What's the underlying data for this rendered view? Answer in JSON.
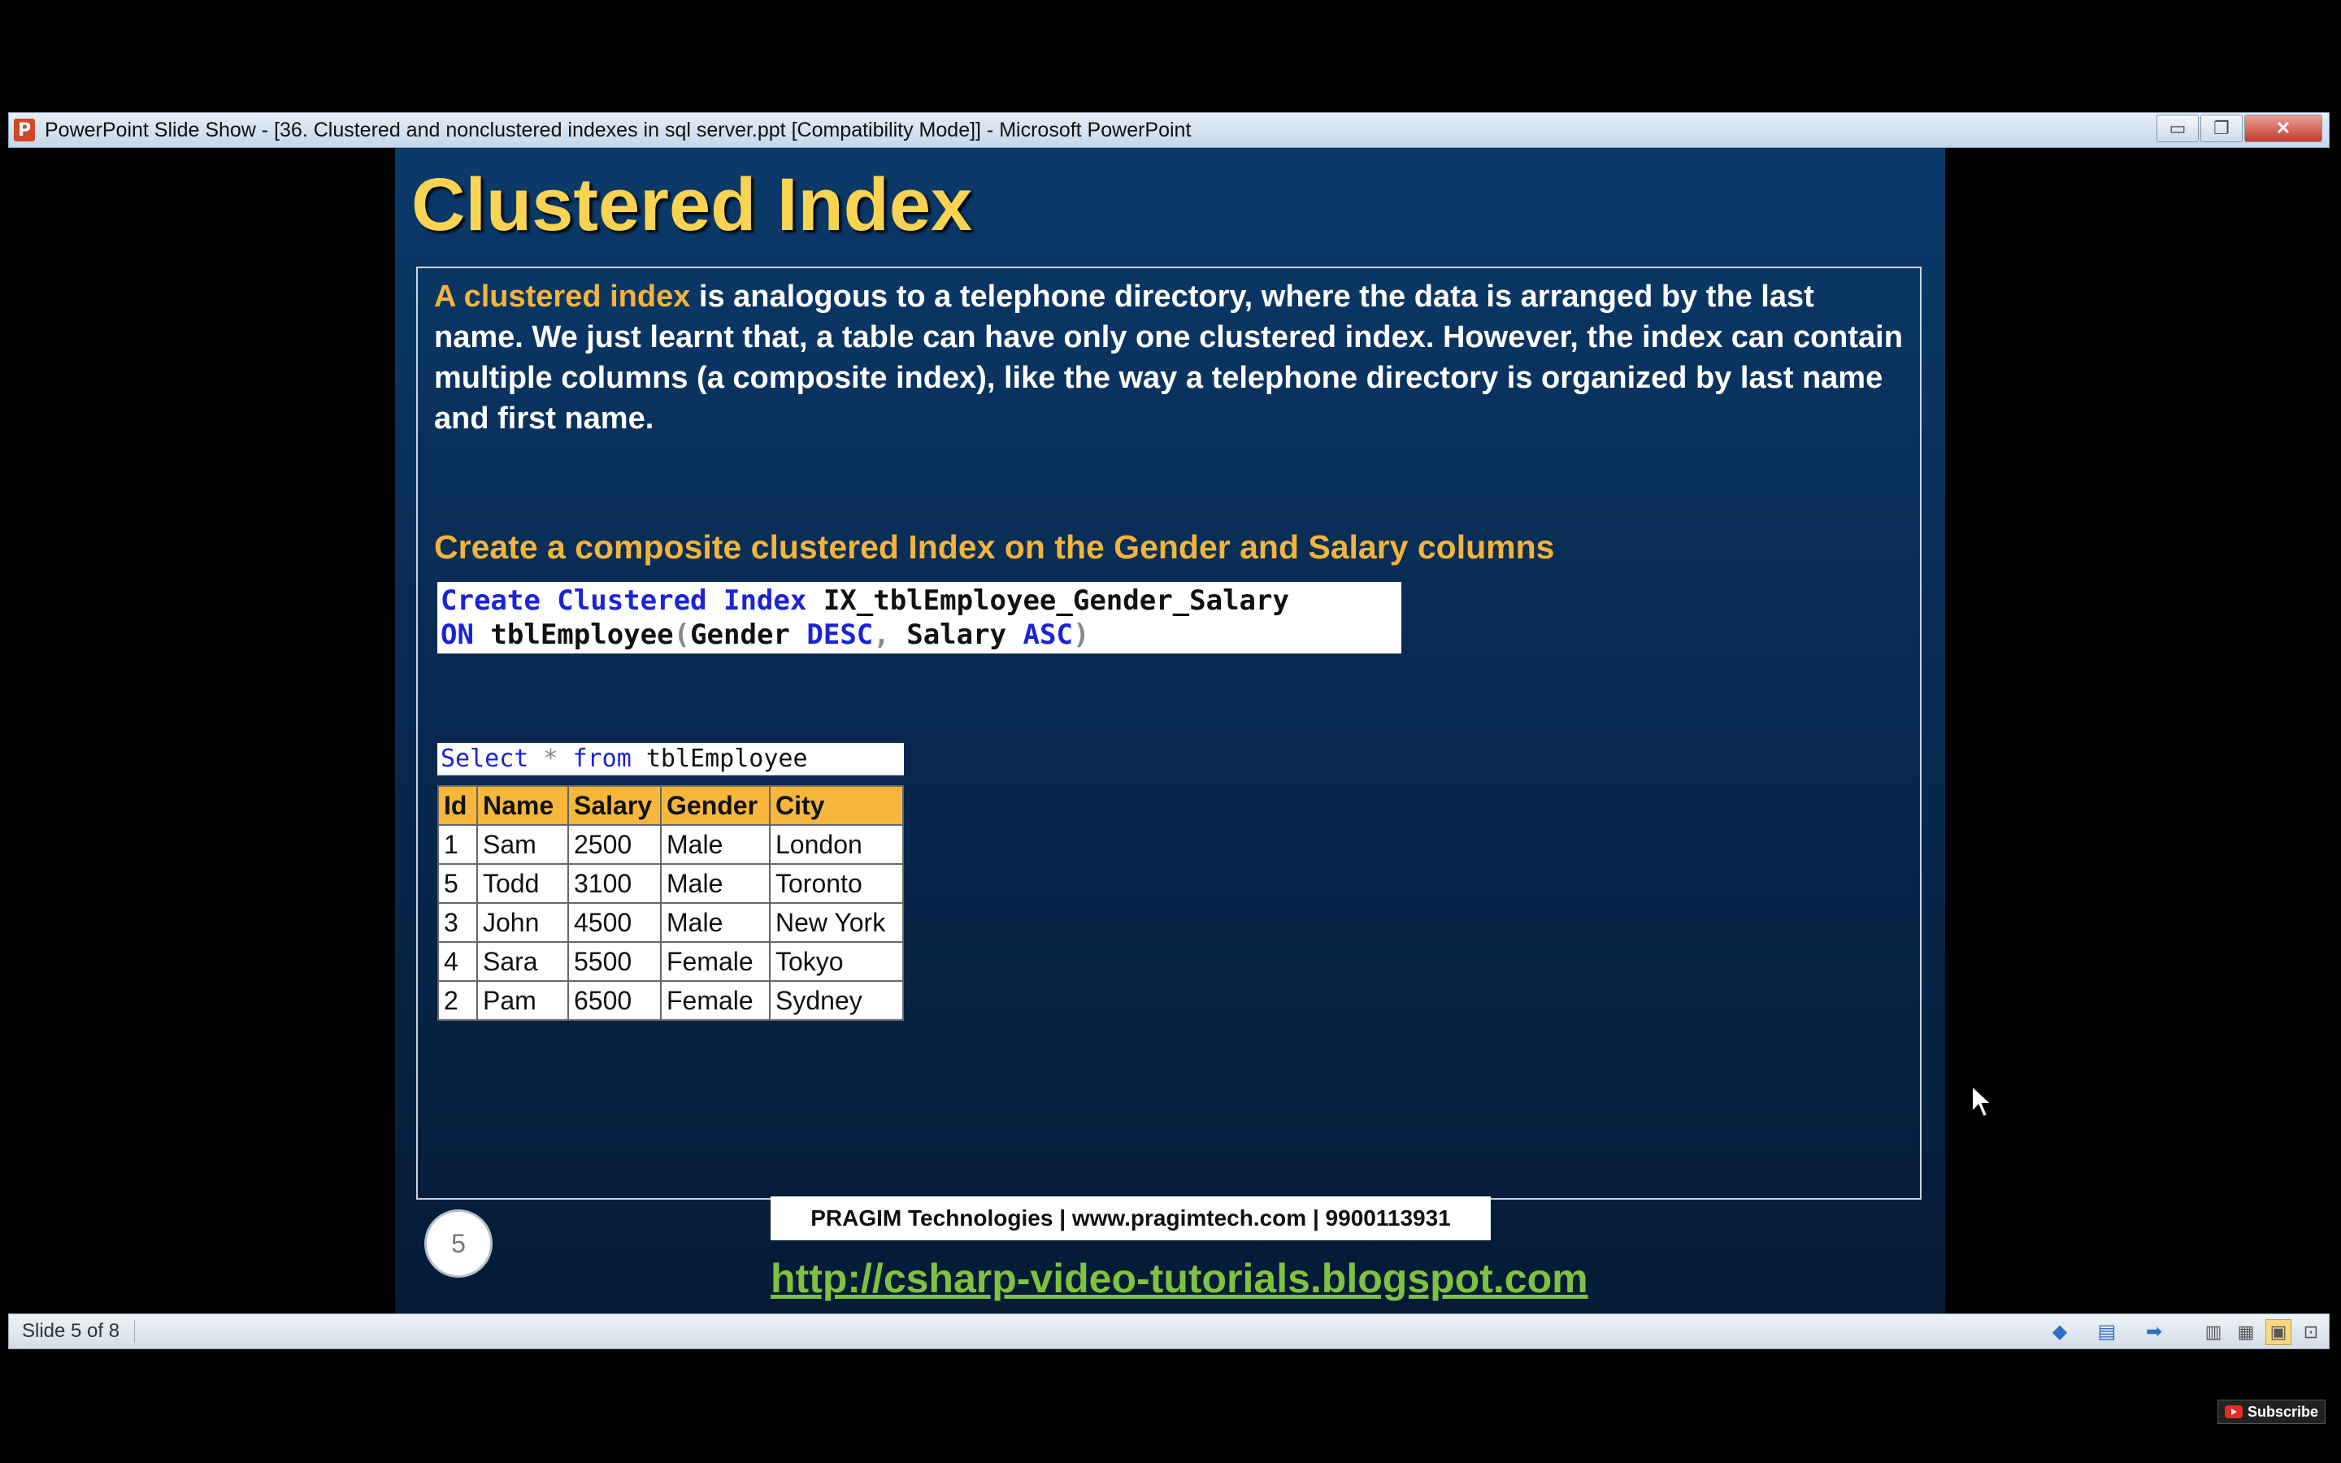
{
  "window": {
    "title": "PowerPoint Slide Show - [36. Clustered and nonclustered indexes in sql server.ppt [Compatibility Mode]] - Microsoft PowerPoint",
    "app_icon_letter": "P",
    "minimize_glyph": "▭",
    "restore_glyph": "❐",
    "close_glyph": "✕"
  },
  "slide": {
    "title": "Clustered Index",
    "intro_highlight": "A clustered index",
    "intro_rest": " is analogous to a telephone directory, where the data is arranged by the last name. We just learnt that, a table can have only one clustered index. However, the index can contain multiple columns (a composite index), like the way a telephone directory is organized by last name and first name.",
    "subheading": "Create a composite clustered Index on the Gender and Salary columns",
    "code": {
      "l1_kw": "Create Clustered Index",
      "l1_name": " IX_tblEmployee_Gender_Salary",
      "l2_on": "ON",
      "l2_table": " tblEmployee",
      "l2_paren_open": "(",
      "l2_col1": "Gender ",
      "l2_desc": "DESC",
      "l2_comma": ",",
      "l2_col2": " Salary ",
      "l2_asc": "ASC",
      "l2_paren_close": ")"
    },
    "query": {
      "select": "Select",
      "star": " * ",
      "from": "from",
      "table": " tblEmployee"
    },
    "table": {
      "headers": [
        "Id",
        "Name",
        "Salary",
        "Gender",
        "City"
      ],
      "rows": [
        [
          "1",
          "Sam",
          "2500",
          "Male",
          "London"
        ],
        [
          "5",
          "Todd",
          "3100",
          "Male",
          "Toronto"
        ],
        [
          "3",
          "John",
          "4500",
          "Male",
          "New York"
        ],
        [
          "4",
          "Sara",
          "5500",
          "Female",
          "Tokyo"
        ],
        [
          "2",
          "Pam",
          "6500",
          "Female",
          "Sydney"
        ]
      ]
    },
    "slide_number": "5",
    "company": "PRAGIM Technologies | www.pragimtech.com | 9900113931",
    "blog_url": "http://csharp-video-tutorials.blogspot.com"
  },
  "statusbar": {
    "slide_status": "Slide 5 of 8",
    "prev_icon": "◆",
    "menu_icon": "▤",
    "next_icon": "➡",
    "view_icons": [
      "▥",
      "▦",
      "▣",
      "⊡"
    ]
  },
  "overlay": {
    "subscribe_label": "Subscribe"
  },
  "colors": {
    "title": "#f8d452",
    "highlight": "#f4b43a",
    "sql_keyword": "#1b22d8",
    "table_header": "#f6b73c",
    "link": "#7fc241"
  }
}
